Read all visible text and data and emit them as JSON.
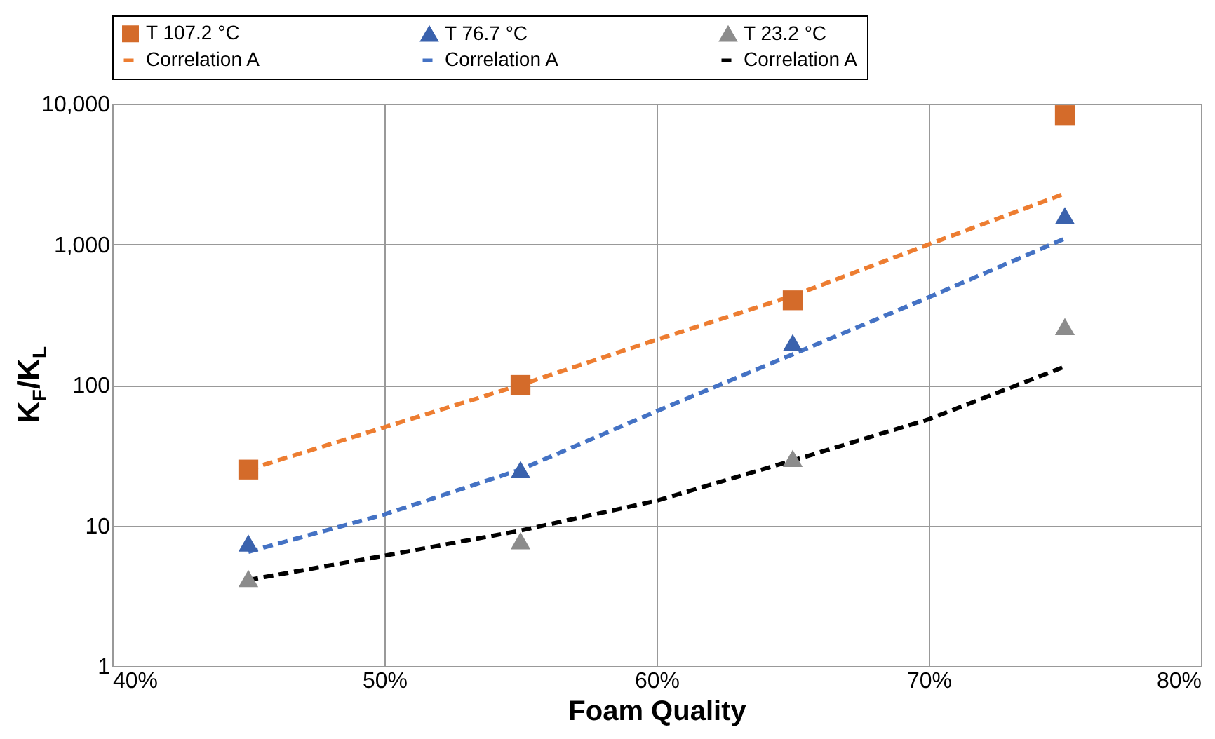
{
  "chart_data": {
    "type": "scatter",
    "xlabel": "Foam Quality",
    "ylabel": "K$_{F}$/K$_{L}$",
    "log": "y",
    "grid": true,
    "legend": "top",
    "xlim": [
      40,
      80
    ],
    "xticks": [
      {
        "value": 40,
        "label": "40%"
      },
      {
        "value": 50,
        "label": "50%"
      },
      {
        "value": 60,
        "label": "60%"
      },
      {
        "value": 70,
        "label": "70%"
      },
      {
        "value": 80,
        "label": "80%"
      }
    ],
    "ylim": [
      1,
      10000
    ],
    "yticks": [
      1,
      10,
      100,
      {
        "value": 1000,
        "label": "1,000"
      },
      {
        "value": 10000,
        "label": "10,000"
      }
    ],
    "series": [
      {
        "name": "T  107.2  °C",
        "marker": "square",
        "color": "#d46b2a",
        "x": [
          45,
          55,
          65,
          75
        ],
        "values": [
          25,
          100,
          400,
          8300
        ]
      },
      {
        "name": "T  76.7  °C",
        "marker": "triangle",
        "color": "#3a62ad",
        "x": [
          45,
          55,
          65,
          75
        ],
        "values": [
          7.5,
          25,
          200,
          1600
        ]
      },
      {
        "name": "T  23.2  °C",
        "marker": "triangle",
        "color": "#8c8c8c",
        "x": [
          45,
          55,
          65,
          75
        ],
        "values": [
          4.2,
          7.8,
          30,
          260
        ]
      },
      {
        "name": "Correlation A",
        "type": "line",
        "line_style": "dashed",
        "color": "#ed7d31",
        "x": [
          45,
          50,
          55,
          60,
          65,
          70,
          75
        ],
        "values": [
          25,
          50,
          100,
          210,
          430,
          1000,
          2300
        ]
      },
      {
        "name": "Correlation A",
        "type": "line",
        "line_style": "dashed",
        "color": "#4472c4",
        "x": [
          45,
          50,
          55,
          60,
          65,
          70,
          75
        ],
        "values": [
          6.5,
          12,
          25,
          65,
          165,
          420,
          1100
        ]
      },
      {
        "name": "Correlation A",
        "type": "line",
        "line_style": "dashed",
        "color": "#000000",
        "x": [
          45,
          50,
          55,
          60,
          65,
          70,
          75
        ],
        "values": [
          4.1,
          6.1,
          9.2,
          15,
          29,
          57,
          135
        ]
      }
    ]
  }
}
